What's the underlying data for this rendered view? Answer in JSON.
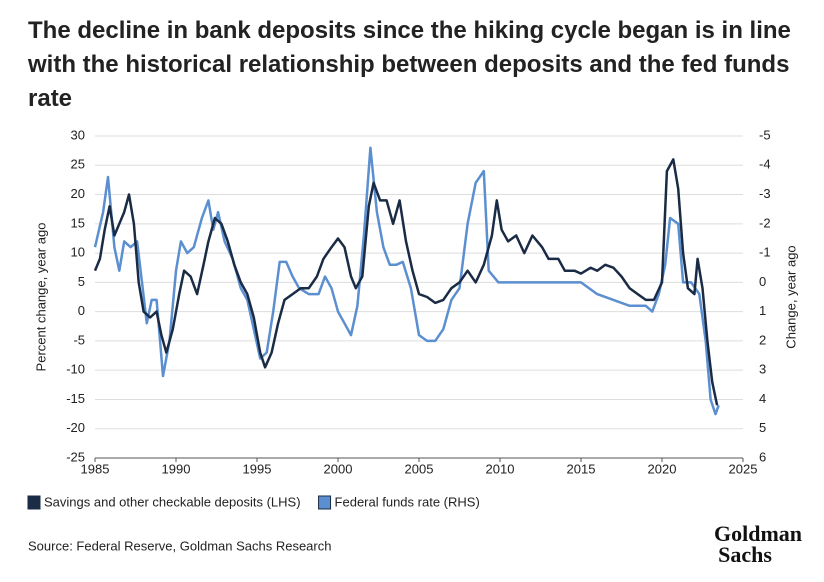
{
  "chart_data": {
    "type": "line",
    "title": "The decline in bank deposits since the hiking cycle began is in line with the historical relationship between deposits and the fed funds rate",
    "ylabel": "Percent change, year ago",
    "y2label": "Change, year ago",
    "xlim": [
      1985,
      2025
    ],
    "xticks": [
      1985,
      1990,
      1995,
      2000,
      2005,
      2010,
      2015,
      2020,
      2025
    ],
    "ylim": [
      -25,
      30
    ],
    "yticks": [
      -25,
      -20,
      -15,
      -10,
      -5,
      0,
      5,
      10,
      15,
      20,
      25,
      30
    ],
    "y2lim": [
      -5,
      6
    ],
    "y2_inverted": true,
    "y2ticks": [
      -5,
      -4,
      -3,
      -2,
      -1,
      0,
      1,
      2,
      3,
      4,
      5,
      6
    ],
    "grid": true,
    "legend": "bottom-left",
    "series": [
      {
        "name": "Savings and other checkable deposits (LHS)",
        "color": "#1a2b45",
        "x": [
          1985,
          1985.3,
          1985.6,
          1985.9,
          1986.2,
          1986.5,
          1986.8,
          1987.1,
          1987.4,
          1987.7,
          1988,
          1988.4,
          1988.8,
          1989.1,
          1989.4,
          1989.8,
          1990.2,
          1990.5,
          1990.9,
          1991.3,
          1991.7,
          1992,
          1992.4,
          1992.8,
          1993.2,
          1993.6,
          1994,
          1994.4,
          1994.8,
          1995.2,
          1995.5,
          1995.9,
          1996.3,
          1996.7,
          1997.2,
          1997.7,
          1998.2,
          1998.7,
          1999.1,
          1999.6,
          2000,
          2000.4,
          2000.8,
          2001.1,
          2001.5,
          2001.9,
          2002.2,
          2002.6,
          2003,
          2003.4,
          2003.8,
          2004.2,
          2004.6,
          2005,
          2005.5,
          2006,
          2006.5,
          2007,
          2007.5,
          2008,
          2008.5,
          2009,
          2009.5,
          2009.8,
          2010.1,
          2010.5,
          2011,
          2011.5,
          2012,
          2012.6,
          2013,
          2013.6,
          2014,
          2014.6,
          2015,
          2015.6,
          2016,
          2016.5,
          2017,
          2017.5,
          2018,
          2018.5,
          2019,
          2019.5,
          2020,
          2020.3,
          2020.7,
          2021,
          2021.3,
          2021.6,
          2022,
          2022.2,
          2022.5,
          2022.8,
          2023.1,
          2023.4
        ],
        "values": [
          7,
          9,
          14,
          18,
          13,
          15,
          17,
          20,
          15,
          5,
          0,
          -1,
          0,
          -4,
          -7,
          -3,
          3,
          7,
          6,
          3,
          8,
          12,
          16,
          15,
          12,
          8,
          5,
          3,
          -1,
          -7,
          -9.5,
          -7,
          -2,
          2,
          3,
          4,
          4,
          6,
          9,
          11,
          12.5,
          11,
          6,
          4,
          6,
          18,
          22,
          19,
          19,
          15,
          19,
          12,
          7,
          3,
          2.5,
          1.5,
          2,
          4,
          5,
          7,
          5,
          8,
          13,
          19,
          14,
          12,
          13,
          10,
          13,
          11,
          9,
          9,
          7,
          7,
          6.5,
          7.5,
          7,
          8,
          7.5,
          6,
          4,
          3,
          2,
          2,
          5,
          24,
          26,
          21,
          10,
          4,
          3,
          9,
          4,
          -5,
          -12,
          -16
        ]
      },
      {
        "name": "Federal funds rate (RHS)",
        "color": "#5b8fd0",
        "axis": "y2",
        "x": [
          1985,
          1985.5,
          1985.8,
          1986.2,
          1986.5,
          1986.8,
          1987.2,
          1987.6,
          1987.9,
          1988.2,
          1988.5,
          1988.8,
          1989.2,
          1989.6,
          1990,
          1990.3,
          1990.7,
          1991.1,
          1991.6,
          1992,
          1992.3,
          1992.6,
          1993,
          1993.5,
          1994,
          1994.4,
          1994.8,
          1995.2,
          1995.6,
          1996,
          1996.4,
          1996.8,
          1997.2,
          1997.6,
          1998.2,
          1998.8,
          1999.2,
          1999.6,
          2000,
          2000.4,
          2000.8,
          2001.2,
          2001.6,
          2002,
          2002.4,
          2002.8,
          2003.2,
          2003.6,
          2004,
          2004.5,
          2005,
          2005.5,
          2006,
          2006.5,
          2007,
          2007.5,
          2008,
          2008.5,
          2009,
          2009.3,
          2009.6,
          2009.9,
          2015,
          2016,
          2017,
          2018,
          2019,
          2019.4,
          2019.8,
          2020.2,
          2020.5,
          2021,
          2021.3,
          2021.8,
          2022.3,
          2022.7,
          2023,
          2023.3,
          2023.5
        ],
        "values": [
          -1.2,
          -2.4,
          -3.6,
          -1.2,
          -0.4,
          -1.4,
          -1.2,
          -1.4,
          0,
          1.4,
          0.6,
          0.6,
          3.2,
          2,
          -0.4,
          -1.4,
          -1,
          -1.2,
          -2.2,
          -2.8,
          -1.8,
          -2.4,
          -1.4,
          -0.8,
          0.2,
          0.6,
          1.6,
          2.6,
          2.4,
          1,
          -0.7,
          -0.7,
          -0.2,
          0.2,
          0.4,
          0.4,
          -0.2,
          0.2,
          1,
          1.4,
          1.8,
          0.8,
          -1.6,
          -4.6,
          -2.4,
          -1.2,
          -0.6,
          -0.6,
          -0.7,
          0.2,
          1.8,
          2,
          2,
          1.6,
          0.6,
          0.2,
          -2,
          -3.4,
          -3.8,
          -0.4,
          -0.2,
          0,
          0,
          0.4,
          0.6,
          0.8,
          0.8,
          1,
          0.4,
          -0.6,
          -2.2,
          -2,
          0,
          0,
          0.4,
          2,
          4,
          4.5,
          4.2
        ]
      }
    ]
  },
  "source": "Source: Federal Reserve, Goldman Sachs Research",
  "logo": [
    "Goldman",
    "Sachs"
  ]
}
